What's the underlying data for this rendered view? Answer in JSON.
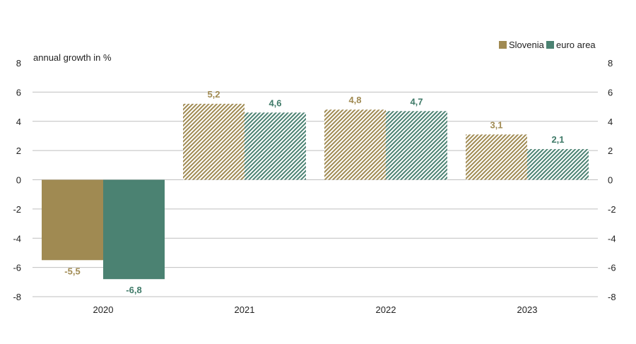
{
  "chart_data": {
    "type": "bar",
    "ylabel": "annual growth in %",
    "categories": [
      "2020",
      "2021",
      "2022",
      "2023"
    ],
    "ylim": [
      -8,
      8
    ],
    "yticks": [
      8,
      6,
      4,
      2,
      0,
      -2,
      -4,
      -6,
      -8
    ],
    "grid": true,
    "legend_position": "top-right",
    "decimal_separator": ",",
    "series": [
      {
        "name": "Slovenia",
        "values": [
          -5.5,
          5.2,
          4.8,
          3.1
        ],
        "color": "#a08a52",
        "label_color": "#a08a52"
      },
      {
        "name": "euro area",
        "values": [
          -6.8,
          4.6,
          4.7,
          2.1
        ],
        "color": "#4b8272",
        "label_color": "#3f7a68"
      }
    ],
    "hatched_from_index": 1
  }
}
